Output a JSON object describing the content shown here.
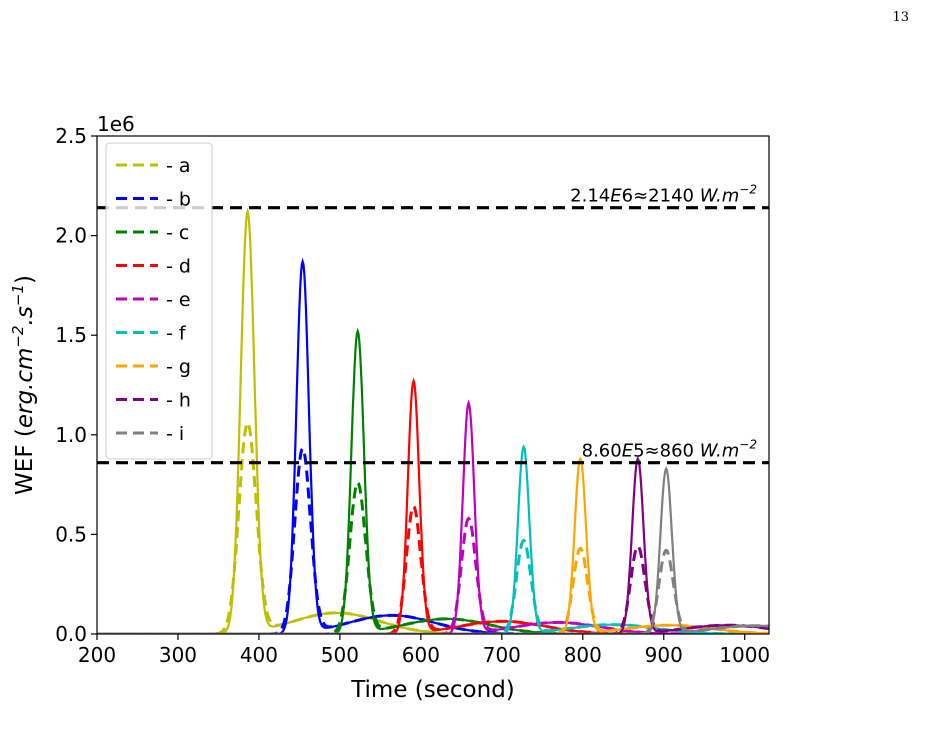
{
  "page_number": "13",
  "chart_data": {
    "type": "line",
    "xlabel": "Time (second)",
    "ylabel_main": "WEF (",
    "ylabel_math": "erg.cm",
    "ylabel_sup1": "−2",
    "ylabel_math2": ".s",
    "ylabel_sup2": "−1",
    "ylabel_close": ")",
    "offset_text": "1e6",
    "xlim": [
      200,
      1030
    ],
    "ylim": [
      0,
      2500000
    ],
    "xticks": [
      "200",
      "300",
      "400",
      "500",
      "600",
      "700",
      "800",
      "900",
      "1000"
    ],
    "yticks": [
      "0.0",
      "0.5",
      "1.0",
      "1.5",
      "2.0",
      "2.5"
    ],
    "legend_position": "top-left",
    "grid": false,
    "reference_lines": [
      {
        "y": 2140000,
        "label_a": "2.14",
        "label_b": "E",
        "label_c": "6≈2140 ",
        "label_d": "W.m",
        "label_e": "−2"
      },
      {
        "y": 860000,
        "label_a": "8.60",
        "label_b": "E",
        "label_c": "5≈860 ",
        "label_d": "W.m",
        "label_e": "−2"
      }
    ],
    "series": [
      {
        "name": "- a",
        "color": "#bfbf00",
        "peak_time": 386,
        "solid_peak": 2120000,
        "dashed_peak": 1060000,
        "width": 12
      },
      {
        "name": "- b",
        "color": "#0000ff",
        "peak_time": 454,
        "solid_peak": 1870000,
        "dashed_peak": 930000,
        "width": 11
      },
      {
        "name": "- c",
        "color": "#008000",
        "peak_time": 522,
        "solid_peak": 1520000,
        "dashed_peak": 760000,
        "width": 11
      },
      {
        "name": "- d",
        "color": "#ff0000",
        "peak_time": 591,
        "solid_peak": 1270000,
        "dashed_peak": 640000,
        "width": 10
      },
      {
        "name": "- e",
        "color": "#bf00bf",
        "peak_time": 659,
        "solid_peak": 1160000,
        "dashed_peak": 580000,
        "width": 10
      },
      {
        "name": "- f",
        "color": "#00bfbf",
        "peak_time": 727,
        "solid_peak": 940000,
        "dashed_peak": 470000,
        "width": 10
      },
      {
        "name": "- g",
        "color": "#ffa500",
        "peak_time": 797,
        "solid_peak": 880000,
        "dashed_peak": 430000,
        "width": 10
      },
      {
        "name": "- h",
        "color": "#800080",
        "peak_time": 868,
        "solid_peak": 880000,
        "dashed_peak": 440000,
        "width": 10
      },
      {
        "name": "- i",
        "color": "#808080",
        "peak_time": 903,
        "solid_peak": 830000,
        "dashed_peak": 420000,
        "width": 10
      }
    ]
  }
}
